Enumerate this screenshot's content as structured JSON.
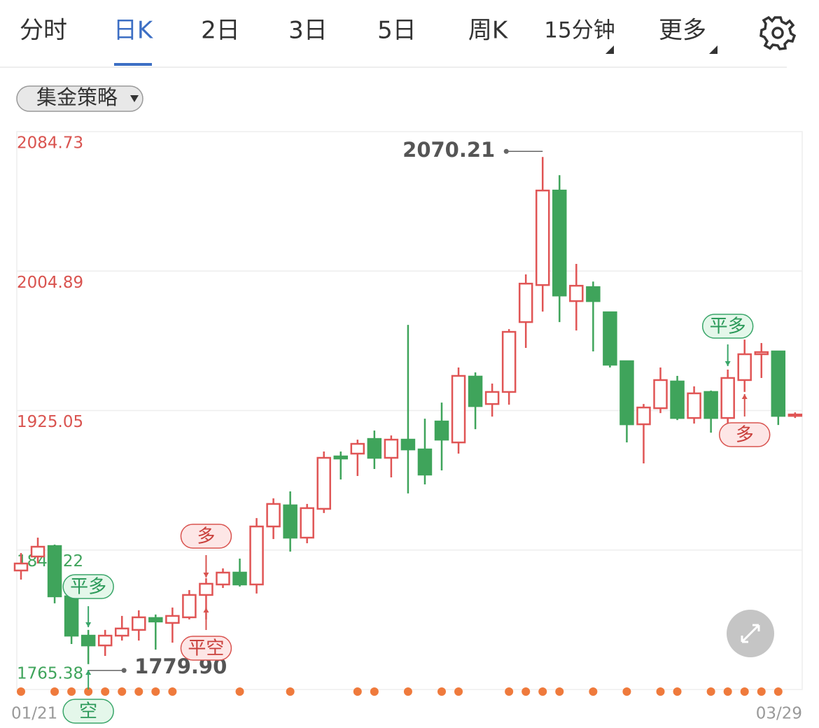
{
  "tabs": [
    "分时",
    "日K",
    "2日",
    "3日",
    "5日",
    "周K",
    "15分钟",
    "更多"
  ],
  "active_tab": 1,
  "strategy_dropdown": "集金策略",
  "chart_data": {
    "type": "candlestick",
    "categories": [
      "01/21",
      null,
      null,
      null,
      null,
      null,
      null,
      null,
      null,
      null,
      null,
      null,
      null,
      null,
      null,
      null,
      null,
      null,
      null,
      null,
      null,
      null,
      null,
      null,
      null,
      null,
      null,
      null,
      null,
      null,
      null,
      null,
      null,
      null,
      null,
      null,
      null,
      null,
      null,
      null,
      null,
      null,
      null,
      null,
      null,
      null,
      "03/29"
    ],
    "open": [
      1833.5,
      1841.5,
      1847.5,
      1818.7,
      1796.2,
      1790.6,
      1796.2,
      1799.5,
      1806.3,
      1803.5,
      1806.7,
      1819.5,
      1825.5,
      1832.3,
      1825.5,
      1858.7,
      1870.8,
      1852.3,
      1868.8,
      1898.8,
      1900.4,
      1908.8,
      1898.0,
      1908.4,
      1902.8,
      1918.8,
      1906.8,
      1944.5,
      1928.8,
      1935.7,
      1975.7,
      1996.9,
      2051.0,
      1987.7,
      1995.7,
      1981.3,
      1953.3,
      1917.2,
      1926.4,
      1941.7,
      1920.8,
      1935.7,
      1920.8,
      1942.5,
      1957.3,
      1958.9,
      1922.0
    ],
    "high": [
      1843.5,
      1852.3,
      1848.3,
      1821.5,
      1799.5,
      1799.5,
      1807.5,
      1810.7,
      1808.3,
      1812.3,
      1822.3,
      1829.1,
      1834.7,
      1840.3,
      1863.5,
      1874.8,
      1878.8,
      1871.6,
      1901.6,
      1901.6,
      1908.4,
      1913.6,
      1910.8,
      1974.1,
      1920.4,
      1929.6,
      1949.7,
      1946.9,
      1940.5,
      1971.7,
      2003.0,
      2070.21,
      2059.8,
      2009.0,
      1998.9,
      1981.3,
      1953.3,
      1928.8,
      1949.7,
      1944.9,
      1938.9,
      1936.5,
      1948.5,
      1965.7,
      1963.7,
      1958.9,
      1924.0
    ],
    "low": [
      1828.3,
      1837.5,
      1814.7,
      1791.4,
      1779.9,
      1784.6,
      1793.4,
      1793.4,
      1788.2,
      1792.2,
      1805.5,
      1805.5,
      1823.5,
      1824.3,
      1820.3,
      1851.5,
      1844.3,
      1849.1,
      1866.4,
      1885.6,
      1887.6,
      1891.6,
      1886.8,
      1877.6,
      1882.8,
      1890.8,
      1900.4,
      1914.4,
      1921.6,
      1928.4,
      1960.9,
      1981.7,
      1975.7,
      1970.9,
      1958.9,
      1949.7,
      1906.8,
      1894.8,
      1923.6,
      1919.6,
      1917.6,
      1912.4,
      1916.4,
      1935.7,
      1943.7,
      1916.8,
      1920.8
    ],
    "close": [
      1837.5,
      1847.1,
      1818.7,
      1796.2,
      1790.6,
      1796.2,
      1800.3,
      1806.7,
      1804.3,
      1807.5,
      1819.5,
      1825.9,
      1832.3,
      1825.5,
      1858.7,
      1871.6,
      1852.3,
      1869.2,
      1898.0,
      1897.6,
      1906.0,
      1898.0,
      1908.4,
      1902.8,
      1888.4,
      1908.4,
      1944.9,
      1927.6,
      1935.7,
      1970.1,
      1997.7,
      2051.0,
      1990.9,
      1996.5,
      1987.7,
      1951.3,
      1917.2,
      1926.8,
      1942.5,
      1920.8,
      1934.9,
      1920.8,
      1943.7,
      1957.3,
      1958.5,
      1922.0,
      1922.8
    ],
    "up_color": "#e05555",
    "down_color": "#3fa45b",
    "ylim": [
      1765.38,
      2084.73
    ],
    "yticks": [
      2084.73,
      2004.89,
      1925.05,
      1845.22,
      1765.38
    ],
    "ytick_colors": [
      "#d9534f",
      "#d9534f",
      "#d9534f",
      "#3fa45b",
      "#3fa45b"
    ],
    "grid": true,
    "max_annotation": 2070.21,
    "min_annotation": {
      "value": 1779.9,
      "label": "1779.90"
    },
    "signals": [
      "平多",
      "空",
      "多",
      "平空",
      "平多",
      "多"
    ]
  }
}
